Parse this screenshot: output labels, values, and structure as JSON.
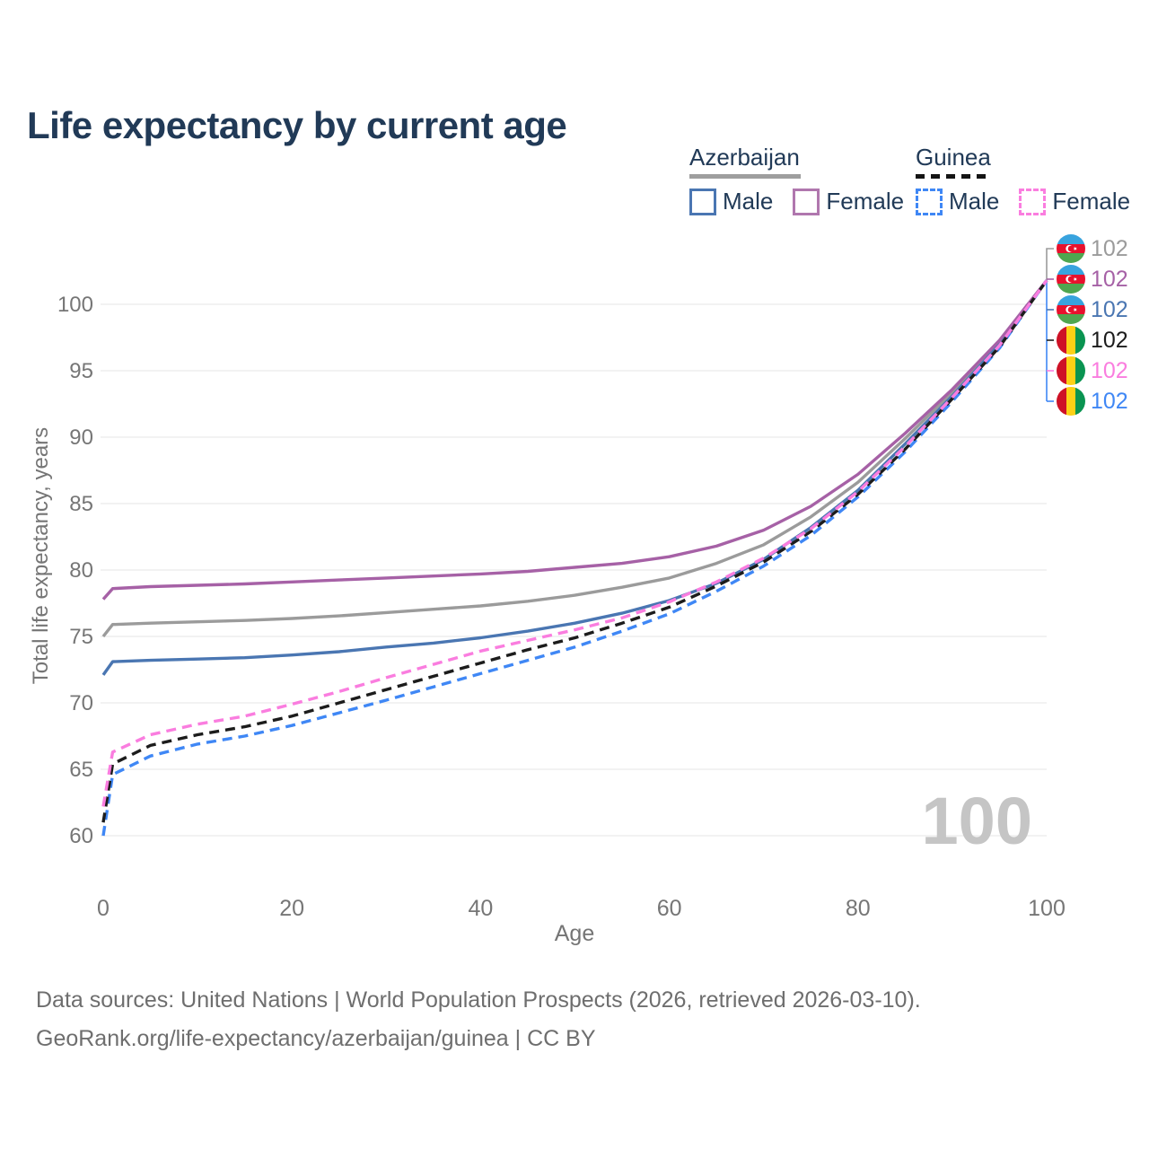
{
  "header": {
    "title": "Life expectancy by current age"
  },
  "legend": {
    "groups": [
      {
        "label": "Azerbaijan",
        "line_style": "solid",
        "underline_color": "#9e9e9e",
        "items": [
          {
            "label": "Male",
            "color": "#4a76b2"
          },
          {
            "label": "Female",
            "color": "#b077ae"
          }
        ]
      },
      {
        "label": "Guinea",
        "line_style": "dashed",
        "underline_color": "#141414",
        "items": [
          {
            "label": "Male",
            "color": "#3f87f5"
          },
          {
            "label": "Female",
            "color": "#fa7ddf"
          }
        ]
      }
    ]
  },
  "chart_data": {
    "type": "line",
    "title": "Life expectancy by current age",
    "xlabel": "Age",
    "ylabel": "Total life expectancy, years",
    "xlim": [
      0,
      100
    ],
    "ylim": [
      60,
      102
    ],
    "xticks": [
      0,
      20,
      40,
      60,
      80,
      100
    ],
    "yticks": [
      60,
      65,
      70,
      75,
      80,
      85,
      90,
      95,
      100
    ],
    "grid": "horizontal-only",
    "legend_position": "top-right",
    "watermark": "100",
    "x": [
      0,
      1,
      5,
      10,
      15,
      20,
      25,
      30,
      35,
      40,
      45,
      50,
      55,
      60,
      65,
      70,
      75,
      80,
      85,
      90,
      95,
      100
    ],
    "series": [
      {
        "name": "Azerbaijan Both sexes",
        "country": "Azerbaijan",
        "sex": "Both",
        "style": "solid",
        "color": "#9b9b9b",
        "end_label": "102",
        "flag": "az",
        "values": [
          75.0,
          75.9,
          76.0,
          76.1,
          76.2,
          76.35,
          76.55,
          76.8,
          77.05,
          77.3,
          77.65,
          78.1,
          78.7,
          79.4,
          80.5,
          81.9,
          84.0,
          86.6,
          89.9,
          93.4,
          97.1,
          101.8
        ]
      },
      {
        "name": "Azerbaijan Female",
        "country": "Azerbaijan",
        "sex": "Female",
        "style": "solid",
        "color": "#a661a6",
        "end_label": "102",
        "flag": "az",
        "values": [
          77.8,
          78.6,
          78.75,
          78.85,
          78.95,
          79.1,
          79.25,
          79.4,
          79.55,
          79.7,
          79.9,
          80.2,
          80.5,
          81.0,
          81.8,
          83.0,
          84.8,
          87.2,
          90.3,
          93.6,
          97.3,
          101.8
        ]
      },
      {
        "name": "Azerbaijan Male",
        "country": "Azerbaijan",
        "sex": "Male",
        "style": "solid",
        "color": "#4a76b2",
        "end_label": "102",
        "flag": "az",
        "values": [
          72.1,
          73.1,
          73.2,
          73.3,
          73.4,
          73.6,
          73.85,
          74.2,
          74.5,
          74.9,
          75.4,
          76.0,
          76.75,
          77.7,
          79.0,
          80.8,
          83.2,
          86.0,
          89.5,
          93.1,
          97.0,
          101.8
        ]
      },
      {
        "name": "Guinea Both sexes",
        "country": "Guinea",
        "sex": "Both",
        "style": "dashed",
        "color": "#1c1c1c",
        "end_label": "102",
        "flag": "gn",
        "values": [
          61.0,
          65.4,
          66.8,
          67.6,
          68.2,
          69.0,
          70.0,
          71.0,
          72.0,
          73.0,
          74.0,
          74.9,
          76.0,
          77.2,
          78.8,
          80.6,
          82.9,
          85.7,
          89.1,
          92.9,
          96.8,
          101.8
        ]
      },
      {
        "name": "Guinea Female",
        "country": "Guinea",
        "sex": "Female",
        "style": "dashed",
        "color": "#fa7ddf",
        "end_label": "102",
        "flag": "gn",
        "values": [
          62.2,
          66.3,
          67.6,
          68.4,
          69.0,
          69.9,
          70.85,
          71.9,
          72.9,
          73.9,
          74.7,
          75.5,
          76.4,
          77.6,
          79.1,
          80.9,
          83.1,
          85.9,
          89.3,
          93.0,
          96.9,
          101.8
        ]
      },
      {
        "name": "Guinea Male",
        "country": "Guinea",
        "sex": "Male",
        "style": "dashed",
        "color": "#3f87f5",
        "end_label": "102",
        "flag": "gn",
        "values": [
          60.0,
          64.6,
          66.0,
          66.9,
          67.5,
          68.3,
          69.25,
          70.2,
          71.2,
          72.2,
          73.2,
          74.2,
          75.4,
          76.7,
          78.4,
          80.3,
          82.6,
          85.5,
          88.9,
          92.7,
          96.7,
          101.8
        ]
      }
    ]
  },
  "footer": {
    "line1": "Data sources: United Nations | World Population Prospects (2026, retrieved 2026-03-10).",
    "line2": "GeoRank.org/life-expectancy/azerbaijan/guinea | CC BY"
  }
}
